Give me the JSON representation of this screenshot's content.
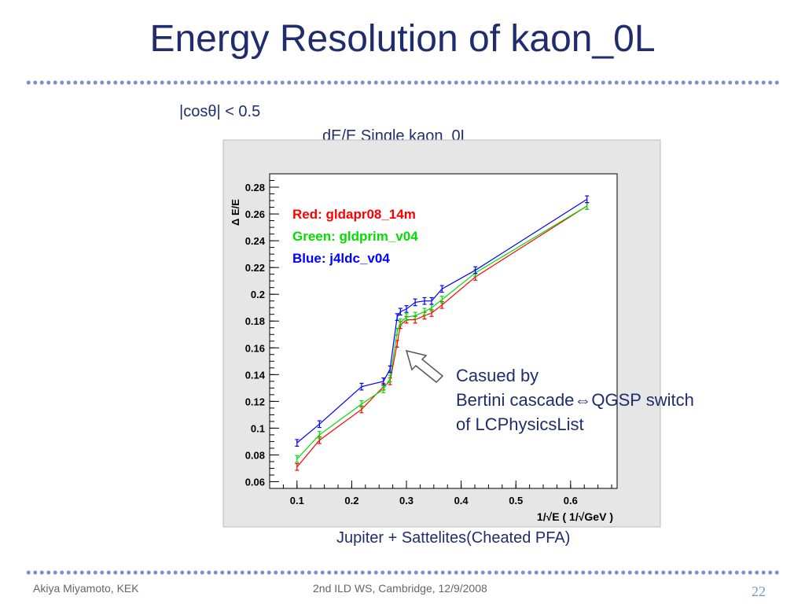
{
  "slide": {
    "title": "Energy Resolution of kaon_0L",
    "selection_label": "|cosθ| < 0.5",
    "annotation_lines": [
      "Casued by",
      "Bertini cascade⇔QGSP switch",
      "of LCPhysicsList"
    ],
    "caption": "Jupiter + Sattelites(Cheated PFA)",
    "footer_author": "Akiya Miyamoto, KEK",
    "footer_event": "2nd ILD WS, Cambridge, 12/9/2008",
    "page_number": "22",
    "colors": {
      "title": "#1f2d6e",
      "dots": "#7f90c8"
    }
  },
  "chart_data": {
    "type": "line",
    "title": "dE/E Single kaon_0L",
    "xlabel": "1/√E ( 1/√GeV )",
    "ylabel": "Δ E/E",
    "xlim": [
      0.05,
      0.685
    ],
    "ylim": [
      0.055,
      0.29
    ],
    "xticks": [
      0.1,
      0.2,
      0.3,
      0.4,
      0.5,
      0.6
    ],
    "yticks": [
      0.06,
      0.08,
      0.1,
      0.12,
      0.14,
      0.16,
      0.18,
      0.2,
      0.22,
      0.24,
      0.26,
      0.28
    ],
    "legend_position": "top-left",
    "legend_texts": [
      "Red: gldapr08_14m",
      "Green: gldprim_v04",
      "Blue: j4ldc_v04"
    ],
    "x": [
      0.1,
      0.141,
      0.218,
      0.258,
      0.27,
      0.283,
      0.289,
      0.3,
      0.316,
      0.333,
      0.346,
      0.365,
      0.426,
      0.63
    ],
    "series": [
      {
        "color": "#ff0000",
        "values": [
          0.071,
          0.091,
          0.114,
          0.131,
          0.135,
          0.163,
          0.177,
          0.181,
          0.181,
          0.184,
          0.186,
          0.192,
          0.213,
          0.266
        ]
      },
      {
        "color": "#00dd00",
        "values": [
          0.077,
          0.095,
          0.118,
          0.129,
          0.137,
          0.172,
          0.179,
          0.183,
          0.184,
          0.187,
          0.19,
          0.196,
          0.216,
          0.266
        ]
      },
      {
        "color": "#0000ff",
        "values": [
          0.089,
          0.103,
          0.131,
          0.135,
          0.144,
          0.183,
          0.187,
          0.189,
          0.194,
          0.195,
          0.195,
          0.204,
          0.218,
          0.271
        ]
      }
    ],
    "error": 0.0025,
    "colors": {
      "frame_bg": "#ffffff",
      "canvas_bg": "#e6e6e6"
    }
  }
}
